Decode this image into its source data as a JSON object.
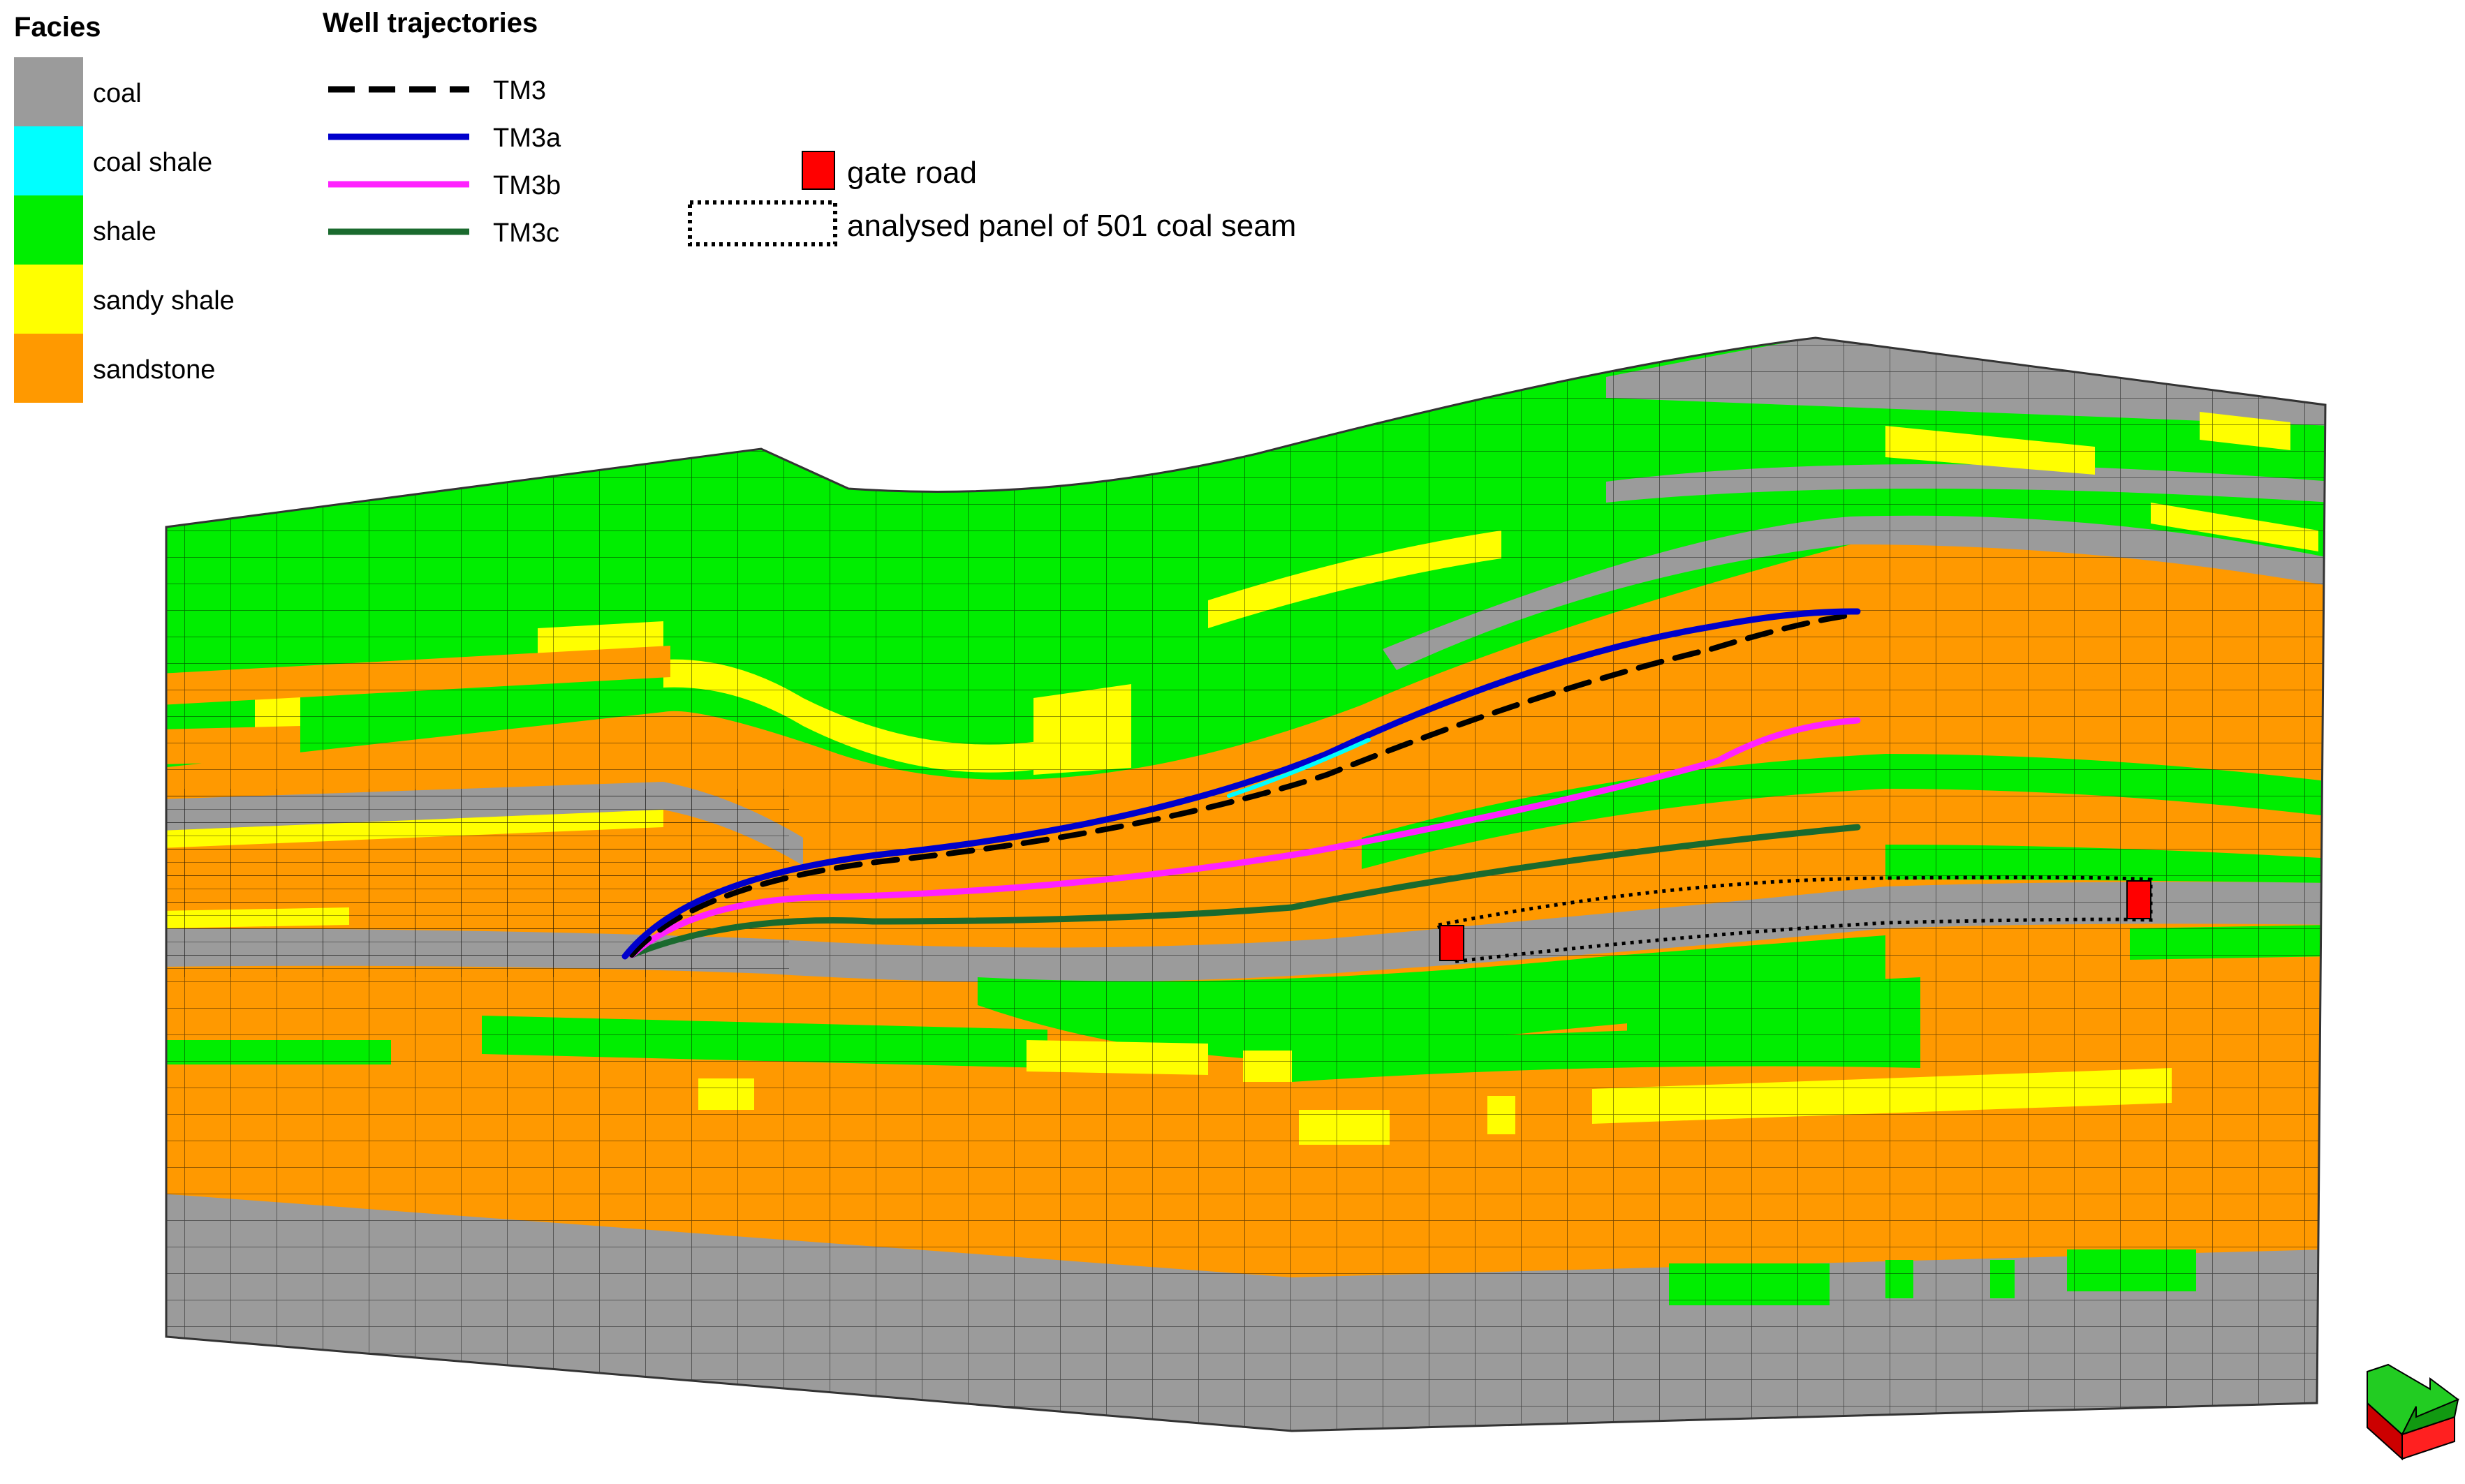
{
  "facies_legend": {
    "title": "Facies",
    "items": [
      {
        "label": "coal",
        "color": "#9b9b9b"
      },
      {
        "label": "coal shale",
        "color": "#00ffff"
      },
      {
        "label": "shale",
        "color": "#00ee00"
      },
      {
        "label": "sandy shale",
        "color": "#ffff00"
      },
      {
        "label": "sandstone",
        "color": "#ff9900"
      }
    ]
  },
  "wells_legend": {
    "title": "Well trajectories",
    "items": [
      {
        "label": "TM3",
        "color": "#000000",
        "style": "dashed"
      },
      {
        "label": "TM3a",
        "color": "#0000cc",
        "style": "solid"
      },
      {
        "label": "TM3b",
        "color": "#ff22ff",
        "style": "solid"
      },
      {
        "label": "TM3c",
        "color": "#1a6a2e",
        "style": "solid"
      }
    ]
  },
  "features_legend": {
    "items": [
      {
        "label": "gate road",
        "color": "#ff0000",
        "symbol": "filled-square"
      },
      {
        "label": "analysed panel of 501 coal seam",
        "color": "#000000",
        "symbol": "dotted-rectangle"
      }
    ]
  },
  "orientation_icon": "3d-axis-arrow-icon"
}
